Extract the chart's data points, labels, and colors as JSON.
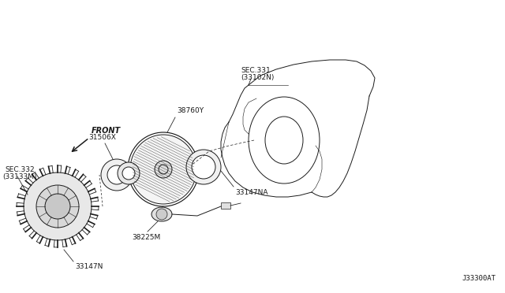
{
  "bg_color": "#ffffff",
  "line_color": "#1a1a1a",
  "fig_width": 6.4,
  "fig_height": 3.72,
  "dpi": 100,
  "diagram_id": "J33300AT",
  "labels": {
    "sec331": "SEC.331",
    "sec331b": "(33102N)",
    "sec332": "SEC.332",
    "sec332b": "(33133M)",
    "part38760Y": "38760Y",
    "part31506X": "31506X",
    "part33147NA": "33147NA",
    "part38225M": "38225M",
    "part33147N": "33147N",
    "front": "FRONT"
  }
}
